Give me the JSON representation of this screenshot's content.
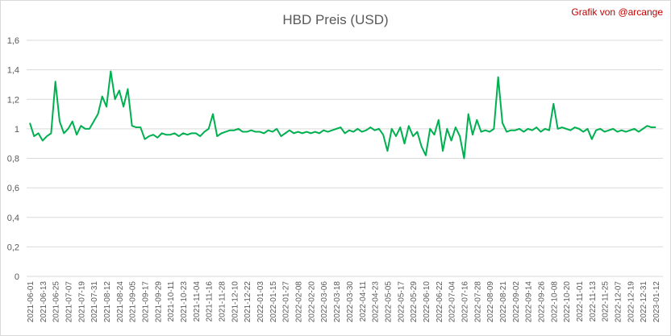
{
  "chart_data": {
    "type": "line",
    "title": "HBD Preis (USD)",
    "annotation": "Grafik von @arcange",
    "categories": [
      "2021-06-01",
      null,
      null,
      "2021-06-13",
      null,
      null,
      "2021-06-25",
      null,
      null,
      "2021-07-07",
      null,
      null,
      "2021-07-19",
      null,
      null,
      "2021-07-31",
      null,
      null,
      "2021-08-12",
      null,
      null,
      "2021-08-24",
      null,
      null,
      "2021-09-05",
      null,
      null,
      "2021-09-17",
      null,
      null,
      "2021-09-29",
      null,
      null,
      "2021-10-11",
      null,
      null,
      "2021-10-23",
      null,
      null,
      "2021-11-04",
      null,
      null,
      "2021-11-16",
      null,
      null,
      "2021-11-28",
      null,
      null,
      "2021-12-10",
      null,
      null,
      "2021-12-22",
      null,
      null,
      "2022-01-03",
      null,
      null,
      "2022-01-15",
      null,
      null,
      "2022-01-27",
      null,
      null,
      "2022-02-08",
      null,
      null,
      "2022-02-20",
      null,
      null,
      "2022-03-06",
      null,
      null,
      "2022-03-18",
      null,
      null,
      "2022-03-30",
      null,
      null,
      "2022-04-11",
      null,
      null,
      "2022-04-23",
      null,
      null,
      "2022-05-05",
      null,
      null,
      "2022-05-17",
      null,
      null,
      "2022-05-29",
      null,
      null,
      "2022-06-10",
      null,
      null,
      "2022-06-22",
      null,
      null,
      "2022-07-04",
      null,
      null,
      "2022-07-16",
      null,
      null,
      "2022-07-28",
      null,
      null,
      "2022-08-09",
      null,
      null,
      "2022-08-21",
      null,
      null,
      "2022-09-02",
      null,
      null,
      "2022-09-14",
      null,
      null,
      "2022-09-26",
      null,
      null,
      "2022-10-08",
      null,
      null,
      "2022-10-20",
      null,
      null,
      "2022-11-01",
      null,
      null,
      "2022-11-13",
      null,
      null,
      "2022-11-25",
      null,
      null,
      "2022-12-07",
      null,
      null,
      "2022-12-19",
      null,
      null,
      "2022-12-31",
      null,
      null,
      "2023-01-12"
    ],
    "series": [
      {
        "name": "HBD",
        "color": "#00b050",
        "values": [
          1.04,
          0.95,
          0.97,
          0.92,
          0.95,
          0.97,
          1.32,
          1.05,
          0.97,
          1.0,
          1.05,
          0.96,
          1.02,
          1.0,
          1.0,
          1.05,
          1.1,
          1.22,
          1.15,
          1.39,
          1.2,
          1.26,
          1.15,
          1.27,
          1.02,
          1.01,
          1.01,
          0.93,
          0.95,
          0.96,
          0.94,
          0.97,
          0.96,
          0.96,
          0.97,
          0.95,
          0.97,
          0.96,
          0.97,
          0.97,
          0.95,
          0.98,
          1.0,
          1.1,
          0.95,
          0.97,
          0.98,
          0.99,
          0.99,
          1.0,
          0.98,
          0.98,
          0.99,
          0.98,
          0.98,
          0.97,
          0.99,
          0.98,
          1.0,
          0.95,
          0.97,
          0.99,
          0.97,
          0.98,
          0.97,
          0.98,
          0.97,
          0.98,
          0.97,
          0.99,
          0.98,
          0.99,
          1.0,
          1.01,
          0.97,
          0.99,
          0.98,
          1.0,
          0.98,
          0.99,
          1.01,
          0.99,
          1.0,
          0.96,
          0.85,
          1.0,
          0.95,
          1.01,
          0.9,
          1.02,
          0.95,
          0.98,
          0.88,
          0.82,
          1.0,
          0.96,
          1.06,
          0.85,
          1.0,
          0.92,
          1.01,
          0.95,
          0.8,
          1.1,
          0.96,
          1.06,
          0.98,
          0.99,
          0.98,
          1.0,
          1.35,
          1.04,
          0.98,
          0.99,
          0.99,
          1.0,
          0.98,
          1.0,
          0.99,
          1.01,
          0.98,
          1.0,
          0.99,
          1.17,
          1.0,
          1.01,
          1.0,
          0.99,
          1.01,
          1.0,
          0.98,
          1.0,
          0.93,
          0.99,
          1.0,
          0.98,
          0.99,
          1.0,
          0.98,
          0.99,
          0.98,
          0.99,
          1.0,
          0.98,
          1.0,
          1.02,
          1.01,
          1.01
        ]
      }
    ],
    "ylim": [
      0,
      1.6
    ],
    "yticks": [
      0,
      {
        "value": 0.2,
        "label": "0,2"
      },
      {
        "value": 0.4,
        "label": "0,4"
      },
      {
        "value": 0.6,
        "label": "0,6"
      },
      {
        "value": 0.8,
        "label": "0,8"
      },
      1,
      {
        "value": 1.2,
        "label": "1,2"
      },
      {
        "value": 1.4,
        "label": "1,4"
      },
      {
        "value": 1.6,
        "label": "1,6"
      }
    ],
    "grid": true
  }
}
